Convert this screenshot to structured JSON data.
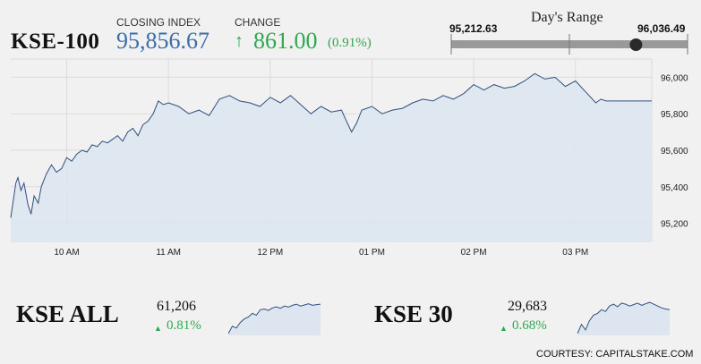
{
  "header": {
    "index_name": "KSE-100",
    "closing_label": "CLOSING INDEX",
    "closing_value": "95,856.67",
    "change_label": "CHANGE",
    "change_arrow": "↑",
    "change_value": "861.00",
    "change_pct": "(0.91%)"
  },
  "days_range": {
    "title": "Day's Range",
    "low": "95,212.63",
    "high": "96,036.49",
    "low_value": 95212.63,
    "high_value": 96036.49,
    "current": 95856.67
  },
  "colors": {
    "line": "#2f4f7f",
    "fill": "#dde6f0",
    "grid": "#dcdcdc",
    "positive": "#2fa84f",
    "accent": "#3b6ea8"
  },
  "chart_data": {
    "type": "area",
    "title": "",
    "xlabel": "",
    "ylabel": "",
    "ylim": [
      95100,
      96100
    ],
    "xlim": [
      9.45,
      15.75
    ],
    "grid": true,
    "xticks": [
      {
        "v": 10,
        "label": "10 AM"
      },
      {
        "v": 11,
        "label": "11 AM"
      },
      {
        "v": 12,
        "label": "12 PM"
      },
      {
        "v": 13,
        "label": "01 PM"
      },
      {
        "v": 14,
        "label": "02 PM"
      },
      {
        "v": 15,
        "label": "03 PM"
      }
    ],
    "yticks": [
      {
        "v": 95200,
        "label": "95,200"
      },
      {
        "v": 95400,
        "label": "95,400"
      },
      {
        "v": 95600,
        "label": "95,600"
      },
      {
        "v": 95800,
        "label": "95,800"
      },
      {
        "v": 96000,
        "label": "96,000"
      }
    ],
    "x": [
      9.45,
      9.5,
      9.52,
      9.55,
      9.58,
      9.62,
      9.65,
      9.68,
      9.72,
      9.75,
      9.8,
      9.85,
      9.9,
      9.95,
      10.0,
      10.05,
      10.1,
      10.15,
      10.2,
      10.25,
      10.3,
      10.35,
      10.4,
      10.45,
      10.5,
      10.55,
      10.6,
      10.65,
      10.7,
      10.75,
      10.8,
      10.85,
      10.9,
      10.95,
      11.0,
      11.1,
      11.2,
      11.3,
      11.4,
      11.5,
      11.6,
      11.7,
      11.8,
      11.9,
      12.0,
      12.1,
      12.2,
      12.3,
      12.4,
      12.5,
      12.6,
      12.7,
      12.75,
      12.8,
      12.85,
      12.9,
      13.0,
      13.1,
      13.2,
      13.3,
      13.4,
      13.5,
      13.6,
      13.7,
      13.8,
      13.9,
      14.0,
      14.1,
      14.2,
      14.3,
      14.4,
      14.5,
      14.6,
      14.7,
      14.8,
      14.9,
      15.0,
      15.1,
      15.2,
      15.25,
      15.3,
      15.4,
      15.5,
      15.6,
      15.75
    ],
    "values": [
      95230,
      95420,
      95450,
      95380,
      95420,
      95300,
      95250,
      95350,
      95310,
      95400,
      95470,
      95520,
      95480,
      95500,
      95560,
      95540,
      95580,
      95600,
      95590,
      95630,
      95620,
      95650,
      95640,
      95660,
      95680,
      95650,
      95700,
      95720,
      95680,
      95740,
      95760,
      95800,
      95870,
      95850,
      95860,
      95840,
      95800,
      95820,
      95790,
      95880,
      95900,
      95870,
      95860,
      95840,
      95890,
      95860,
      95900,
      95850,
      95800,
      95840,
      95810,
      95820,
      95760,
      95700,
      95750,
      95820,
      95840,
      95800,
      95820,
      95830,
      95860,
      95880,
      95870,
      95900,
      95880,
      95910,
      95960,
      95930,
      95960,
      95940,
      95950,
      95980,
      96020,
      95990,
      96000,
      95950,
      95980,
      95920,
      95860,
      95880,
      95870,
      95870,
      95870,
      95870,
      95870
    ]
  },
  "kse_all": {
    "name": "KSE ALL",
    "value": "61,206",
    "triangle": "▲",
    "pct": "0.81%",
    "spark": [
      0.05,
      0.25,
      0.2,
      0.35,
      0.45,
      0.5,
      0.6,
      0.55,
      0.7,
      0.72,
      0.68,
      0.75,
      0.78,
      0.74,
      0.8,
      0.77,
      0.82,
      0.85,
      0.8,
      0.83,
      0.86,
      0.82,
      0.84,
      0.85
    ]
  },
  "kse_30": {
    "name": "KSE 30",
    "value": "29,683",
    "triangle": "▲",
    "pct": "0.68%",
    "spark": [
      0.05,
      0.3,
      0.15,
      0.4,
      0.55,
      0.6,
      0.7,
      0.65,
      0.8,
      0.85,
      0.78,
      0.88,
      0.85,
      0.8,
      0.84,
      0.88,
      0.82,
      0.86,
      0.9,
      0.85,
      0.8,
      0.75,
      0.72,
      0.7
    ]
  },
  "footer": {
    "courtesy": "COURTESY: CAPITALSTAKE.COM"
  }
}
